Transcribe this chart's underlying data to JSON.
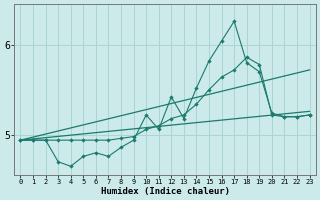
{
  "xlabel": "Humidex (Indice chaleur)",
  "bg_color": "#cceaea",
  "line_color": "#1a7a6e",
  "grid_color": "#aad4d4",
  "xlim": [
    -0.5,
    23.5
  ],
  "ylim": [
    4.55,
    6.45
  ],
  "yticks": [
    5,
    6
  ],
  "xticks": [
    0,
    1,
    2,
    3,
    4,
    5,
    6,
    7,
    8,
    9,
    10,
    11,
    12,
    13,
    14,
    15,
    16,
    17,
    18,
    19,
    20,
    21,
    22,
    23
  ],
  "series": [
    {
      "x": [
        0,
        1,
        2,
        3,
        4,
        5,
        6,
        7,
        8,
        9,
        10,
        11,
        12,
        13,
        14,
        15,
        16,
        17,
        18,
        19,
        20,
        21,
        22,
        23
      ],
      "y": [
        4.94,
        4.94,
        4.94,
        4.7,
        4.65,
        4.76,
        4.8,
        4.76,
        4.86,
        4.94,
        5.22,
        5.06,
        5.42,
        5.18,
        5.52,
        5.82,
        6.04,
        6.26,
        5.8,
        5.7,
        5.24,
        5.2,
        5.2,
        5.22
      ],
      "has_markers": true
    },
    {
      "x": [
        0,
        1,
        2,
        3,
        4,
        5,
        6,
        7,
        8,
        9,
        10,
        11,
        12,
        13,
        14,
        15,
        16,
        17,
        18,
        19,
        20,
        21,
        22,
        23
      ],
      "y": [
        4.94,
        4.94,
        4.94,
        4.94,
        4.94,
        4.94,
        4.94,
        4.94,
        4.96,
        4.98,
        5.06,
        5.1,
        5.18,
        5.22,
        5.34,
        5.5,
        5.64,
        5.72,
        5.86,
        5.78,
        5.22,
        5.2,
        5.2,
        5.22
      ],
      "has_markers": true
    },
    {
      "x": [
        0,
        23
      ],
      "y": [
        4.94,
        5.72
      ],
      "has_markers": false
    },
    {
      "x": [
        0,
        23
      ],
      "y": [
        4.94,
        5.26
      ],
      "has_markers": false
    }
  ]
}
